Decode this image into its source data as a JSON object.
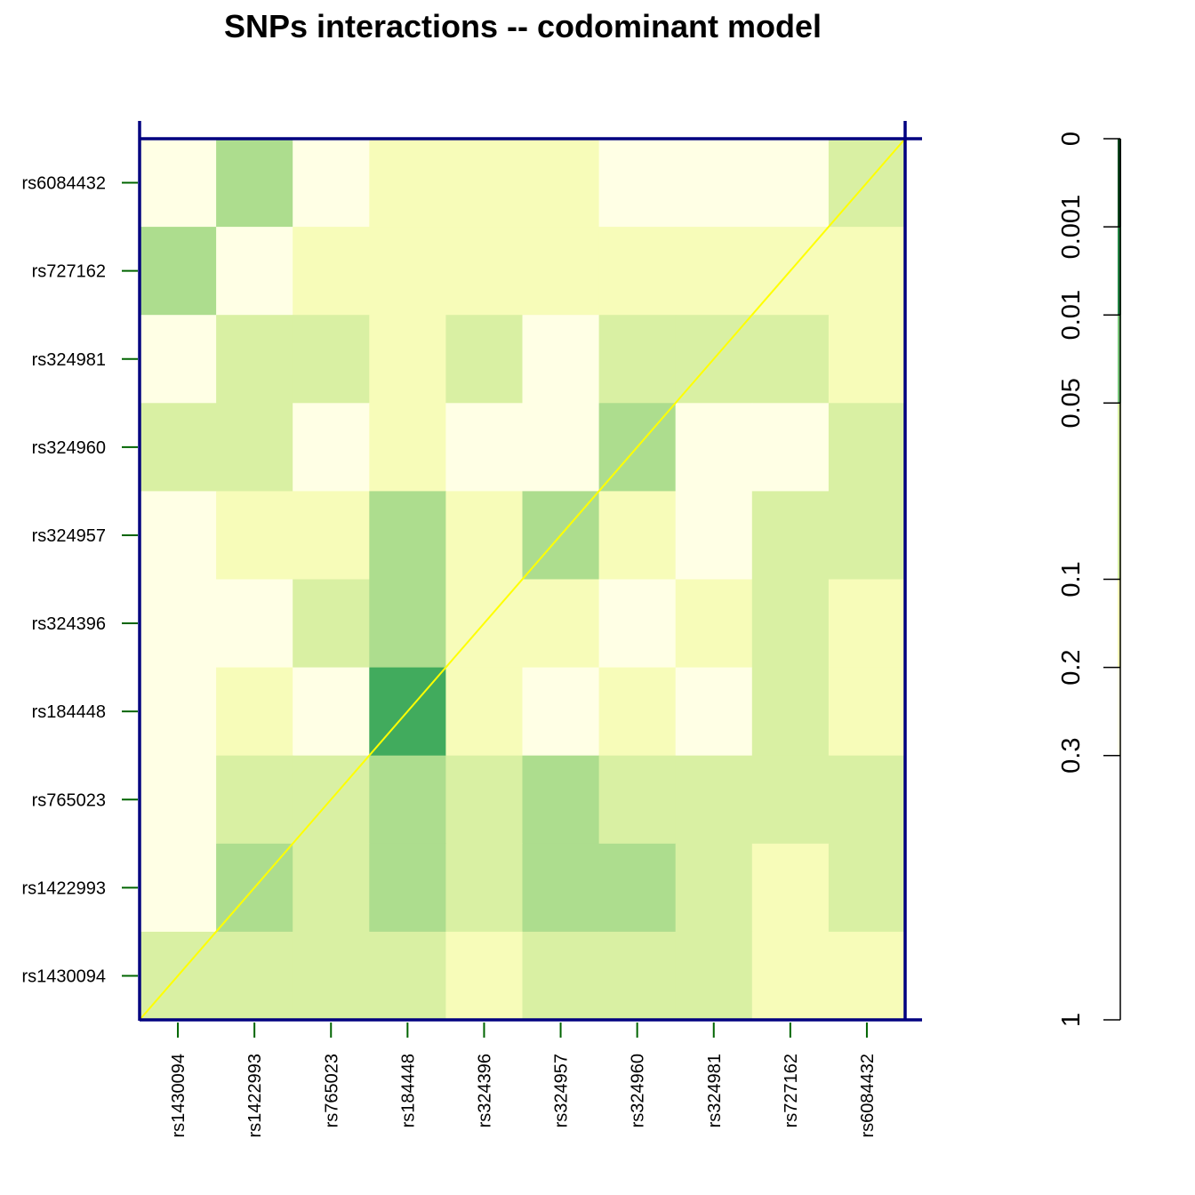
{
  "chart_data": {
    "type": "heatmap",
    "title": "SNPs interactions -- codominant model",
    "x_categories": [
      "rs1430094",
      "rs1422993",
      "rs765023",
      "rs184448",
      "rs324396",
      "rs324957",
      "rs324960",
      "rs324981",
      "rs727162",
      "rs6084432"
    ],
    "y_categories_top_to_bottom": [
      "rs6084432",
      "rs727162",
      "rs324981",
      "rs324960",
      "rs324957",
      "rs324396",
      "rs184448",
      "rs765023",
      "rs1422993",
      "rs1430094"
    ],
    "cell_colors_top_to_bottom": [
      [
        "#FFFFE5",
        "#ADDD8E",
        "#FFFFE5",
        "#F7FCB9",
        "#F7FCB9",
        "#F7FCB9",
        "#FFFFE5",
        "#FFFFE5",
        "#FFFFE5",
        "#D9F0A3"
      ],
      [
        "#ADDD8E",
        "#FFFFE5",
        "#F7FCB9",
        "#F7FCB9",
        "#F7FCB9",
        "#F7FCB9",
        "#F7FCB9",
        "#F7FCB9",
        "#F7FCB9",
        "#F7FCB9"
      ],
      [
        "#FFFFE5",
        "#D9F0A3",
        "#D9F0A3",
        "#F7FCB9",
        "#D9F0A3",
        "#FFFFE5",
        "#D9F0A3",
        "#D9F0A3",
        "#D9F0A3",
        "#F7FCB9"
      ],
      [
        "#D9F0A3",
        "#D9F0A3",
        "#FFFFE5",
        "#F7FCB9",
        "#FFFFE5",
        "#FFFFE5",
        "#ADDD8E",
        "#FFFFE5",
        "#FFFFE5",
        "#D9F0A3"
      ],
      [
        "#FFFFE5",
        "#F7FCB9",
        "#F7FCB9",
        "#ADDD8E",
        "#F7FCB9",
        "#ADDD8E",
        "#F7FCB9",
        "#FFFFE5",
        "#D9F0A3",
        "#D9F0A3"
      ],
      [
        "#FFFFE5",
        "#FFFFE5",
        "#D9F0A3",
        "#ADDD8E",
        "#F7FCB9",
        "#F7FCB9",
        "#FFFFE5",
        "#F7FCB9",
        "#D9F0A3",
        "#F7FCB9"
      ],
      [
        "#FFFFE5",
        "#F7FCB9",
        "#FFFFE5",
        "#41AB5D",
        "#F7FCB9",
        "#FFFFE5",
        "#F7FCB9",
        "#FFFFE5",
        "#D9F0A3",
        "#F7FCB9"
      ],
      [
        "#FFFFE5",
        "#D9F0A3",
        "#D9F0A3",
        "#ADDD8E",
        "#D9F0A3",
        "#ADDD8E",
        "#D9F0A3",
        "#D9F0A3",
        "#D9F0A3",
        "#D9F0A3"
      ],
      [
        "#FFFFE5",
        "#ADDD8E",
        "#D9F0A3",
        "#ADDD8E",
        "#D9F0A3",
        "#ADDD8E",
        "#ADDD8E",
        "#D9F0A3",
        "#F7FCB9",
        "#D9F0A3"
      ],
      [
        "#D9F0A3",
        "#D9F0A3",
        "#D9F0A3",
        "#D9F0A3",
        "#F7FCB9",
        "#D9F0A3",
        "#D9F0A3",
        "#D9F0A3",
        "#F7FCB9",
        "#F7FCB9"
      ]
    ],
    "diagonal": true,
    "legend": {
      "position": "right",
      "ticks": [
        "0",
        "0.001",
        "0.01",
        "0.05",
        "0.1",
        "0.2",
        "0.3",
        "1"
      ],
      "segments": [
        {
          "from": "0",
          "to": "0.001",
          "color": "#00441B"
        },
        {
          "from": "0.001",
          "to": "0.01",
          "color": "#238443"
        },
        {
          "from": "0.01",
          "to": "0.05",
          "color": "#78C679"
        },
        {
          "from": "0.05",
          "to": "0.1",
          "color": "#D9F0A3"
        },
        {
          "from": "0.1",
          "to": "0.2",
          "color": "#F7FCB9"
        },
        {
          "from": "0.2",
          "to": "0.3",
          "color": "#FFFFE5"
        },
        {
          "from": "0.3",
          "to": "1",
          "color": "#FFFFFF"
        }
      ]
    },
    "colors": {
      "frame": "#000080",
      "diagonal_line": "#FFFF00",
      "tick_marks": "#006400",
      "legend_axis": "#000000"
    }
  }
}
